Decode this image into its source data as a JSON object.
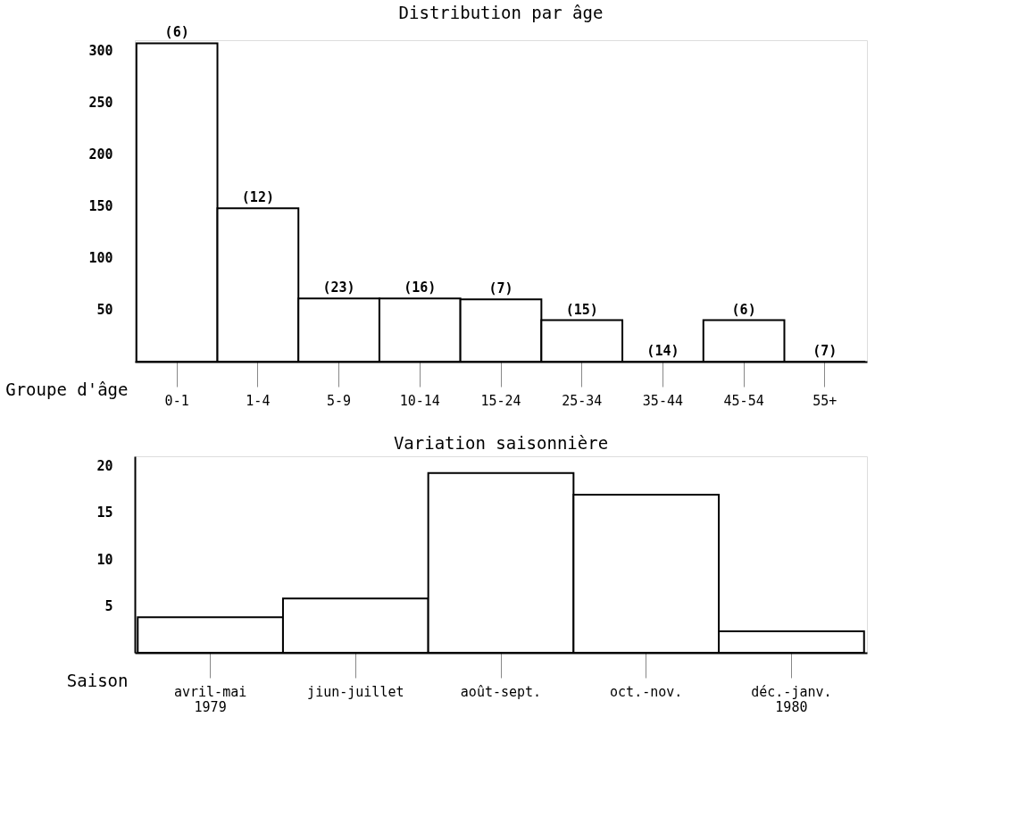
{
  "chart_data": [
    {
      "type": "bar",
      "title": "Distribution par âge",
      "xlabel": "Groupe d'âge",
      "categories": [
        "0-1",
        "1-4",
        "5-9",
        "10-14",
        "15-24",
        "25-34",
        "35-44",
        "45-54",
        "55+"
      ],
      "values": [
        307,
        148,
        61,
        61,
        60,
        40,
        0,
        40,
        0
      ],
      "annotations": [
        {
          "text": "(6)",
          "x": "0-1",
          "y": 307
        },
        {
          "text": "(12)",
          "x": "1-4",
          "y": 148
        },
        {
          "text": "(23)",
          "x": "5-9",
          "y": 61
        },
        {
          "text": "(16)",
          "x": "10-14",
          "y": 61
        },
        {
          "text": "(7)",
          "x": "15-24",
          "y": 60
        },
        {
          "text": "(15)",
          "x": "25-34",
          "y": 40
        },
        {
          "text": "(14)",
          "x": "35-44",
          "y": 0
        },
        {
          "text": "(6)",
          "x": "45-54",
          "y": 40
        },
        {
          "text": "(7)",
          "x": "55+",
          "y": 0
        }
      ],
      "color": "#ffffff",
      "ylim": [
        0,
        310
      ],
      "yticks": [
        50,
        100,
        150,
        200,
        250,
        300
      ],
      "grid": false
    },
    {
      "type": "bar",
      "title": "Variation saisonnière",
      "xlabel": "Saison",
      "categories": [
        "avril-mai\n1979",
        "jiun-juillet",
        "août-sept.",
        "oct.-nov.",
        "déc.-janv.\n1980"
      ],
      "values": [
        3.8,
        5.8,
        19.2,
        16.9,
        2.3
      ],
      "color": "#ffffff",
      "ylim": [
        0,
        21
      ],
      "yticks": [
        5,
        10,
        15,
        20
      ],
      "grid": false
    }
  ]
}
